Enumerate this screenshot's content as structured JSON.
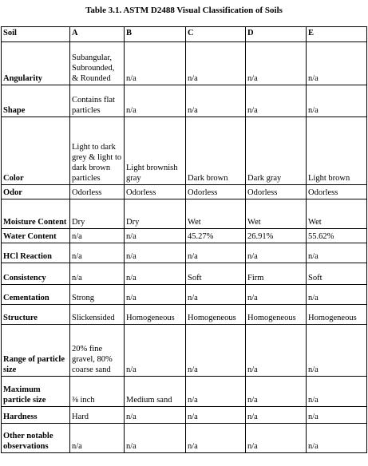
{
  "caption": "Table 3.1. ASTM D2488 Visual Classification of Soils",
  "columns": [
    "Soil",
    "A",
    "B",
    "C",
    "D",
    "E"
  ],
  "rows": [
    {
      "label": "Angularity",
      "cells": [
        "Subangular, Subrounded, & Rounded",
        "n/a",
        "n/a",
        "n/a",
        "n/a"
      ]
    },
    {
      "label": "Shape",
      "cells": [
        "Contains flat particles",
        "n/a",
        "n/a",
        "n/a",
        "n/a"
      ]
    },
    {
      "label": "Color",
      "cells": [
        "Light to dark grey & light to dark brown particles",
        "Light brownish gray",
        "Dark brown",
        "Dark gray",
        "Light brown"
      ]
    },
    {
      "label": "Odor",
      "cells": [
        "Odorless",
        "Odorless",
        "Odorless",
        "Odorless",
        "Odorless"
      ]
    },
    {
      "label": "Moisture Content",
      "cells": [
        "Dry",
        "Dry",
        "Wet",
        "Wet",
        "Wet"
      ]
    },
    {
      "label": "Water Content",
      "cells": [
        "n/a",
        "n/a",
        "45.27%",
        "26.91%",
        "55.62%"
      ]
    },
    {
      "label": "HCl Reaction",
      "cells": [
        "n/a",
        "n/a",
        "n/a",
        "n/a",
        "n/a"
      ]
    },
    {
      "label": "Consistency",
      "cells": [
        "n/a",
        "n/a",
        "Soft",
        "Firm",
        "Soft"
      ]
    },
    {
      "label": "Cementation",
      "cells": [
        "Strong",
        "n/a",
        "n/a",
        "n/a",
        "n/a"
      ]
    },
    {
      "label": "Structure",
      "cells": [
        "Slickensided",
        "Homogeneous",
        "Homogeneous",
        "Homogeneous",
        "Homogeneous"
      ]
    },
    {
      "label": "Range of particle size",
      "cells": [
        "20% fine gravel, 80% coarse sand",
        "n/a",
        "n/a",
        "n/a",
        "n/a"
      ]
    },
    {
      "label": "Maximum particle size",
      "cells": [
        "⅜ inch",
        "Medium sand",
        "n/a",
        "n/a",
        "n/a"
      ]
    },
    {
      "label": "Hardness",
      "cells": [
        "Hard",
        "n/a",
        "n/a",
        "n/a",
        "n/a"
      ]
    },
    {
      "label": "Other notable observations",
      "cells": [
        "n/a",
        "n/a",
        "n/a",
        "n/a",
        "n/a"
      ]
    }
  ]
}
